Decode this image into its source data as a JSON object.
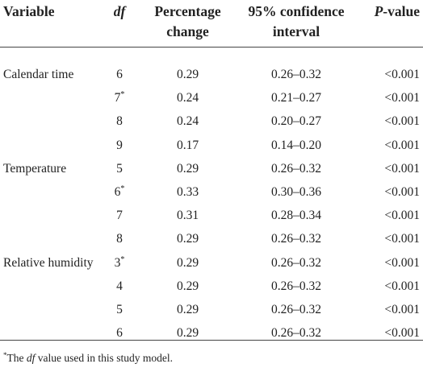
{
  "table": {
    "headers": {
      "variable": "Variable",
      "df": "df",
      "percentage_line1": "Percentage",
      "percentage_line2": "change",
      "ci_line1": "95% confidence",
      "ci_line2": "interval",
      "p_prefix": "P",
      "p_suffix": "-value"
    },
    "rows": [
      {
        "variable": "Calendar time",
        "df": "6",
        "mark": "",
        "pct": "0.29",
        "ci": "0.26–0.32",
        "p": "<0.001"
      },
      {
        "variable": "",
        "df": "7",
        "mark": "*",
        "pct": "0.24",
        "ci": "0.21–0.27",
        "p": "<0.001"
      },
      {
        "variable": "",
        "df": "8",
        "mark": "",
        "pct": "0.24",
        "ci": "0.20–0.27",
        "p": "<0.001"
      },
      {
        "variable": "",
        "df": "9",
        "mark": "",
        "pct": "0.17",
        "ci": "0.14–0.20",
        "p": "<0.001"
      },
      {
        "variable": "Temperature",
        "df": "5",
        "mark": "",
        "pct": "0.29",
        "ci": "0.26–0.32",
        "p": "<0.001"
      },
      {
        "variable": "",
        "df": "6",
        "mark": "*",
        "pct": "0.33",
        "ci": "0.30–0.36",
        "p": "<0.001"
      },
      {
        "variable": "",
        "df": "7",
        "mark": "",
        "pct": "0.31",
        "ci": "0.28–0.34",
        "p": "<0.001"
      },
      {
        "variable": "",
        "df": "8",
        "mark": "",
        "pct": "0.29",
        "ci": "0.26–0.32",
        "p": "<0.001"
      },
      {
        "variable": "Relative humidity",
        "df": "3",
        "mark": "*",
        "pct": "0.29",
        "ci": "0.26–0.32",
        "p": "<0.001"
      },
      {
        "variable": "",
        "df": "4",
        "mark": "",
        "pct": "0.29",
        "ci": "0.26–0.32",
        "p": "<0.001"
      },
      {
        "variable": "",
        "df": "5",
        "mark": "",
        "pct": "0.29",
        "ci": "0.26–0.32",
        "p": "<0.001"
      },
      {
        "variable": "",
        "df": "6",
        "mark": "",
        "pct": "0.29",
        "ci": "0.26–0.32",
        "p": "<0.001"
      }
    ]
  },
  "footnote": {
    "mark": "*",
    "prefix": "The ",
    "term": "df",
    "suffix": " value used in this study model."
  }
}
